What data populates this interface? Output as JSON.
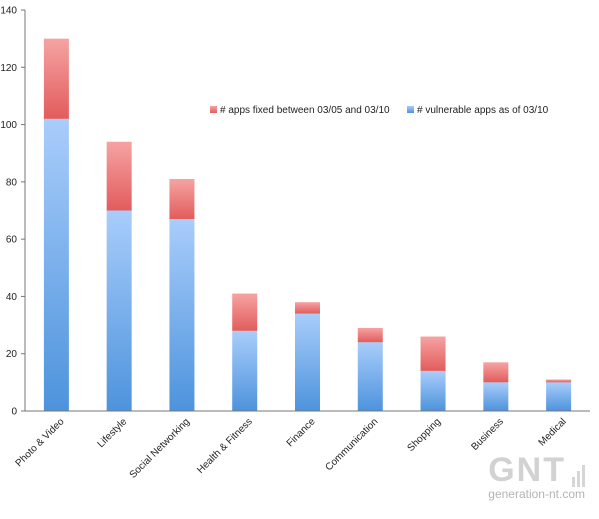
{
  "chart_data": {
    "type": "bar",
    "stacked": true,
    "categories": [
      "Photo & Video",
      "Lifestyle",
      "Social Networking",
      "Health & Fitness",
      "Finance",
      "Communication",
      "Shopping",
      "Business",
      "Medical"
    ],
    "series": [
      {
        "name": "# vulnerable apps as of 03/10",
        "values": [
          102,
          70,
          67,
          28,
          34,
          24,
          14,
          10,
          10
        ],
        "color_top": "#a9cdfb",
        "color_bottom": "#4d93dc"
      },
      {
        "name": "# apps fixed between 03/05 and 03/10",
        "values": [
          28,
          24,
          14,
          13,
          4,
          5,
          12,
          7,
          1
        ],
        "color_top": "#f6a3a3",
        "color_bottom": "#e25c5c"
      }
    ],
    "legend_order": [
      1,
      0
    ],
    "ylim": [
      0,
      140
    ],
    "yticks": [
      0,
      20,
      40,
      60,
      80,
      100,
      120,
      140
    ],
    "title": "",
    "xlabel": "",
    "ylabel": "",
    "grid": false,
    "legend_position": "top-right"
  },
  "watermark": {
    "logo": "GNT",
    "domain": "generation-nt.com"
  }
}
